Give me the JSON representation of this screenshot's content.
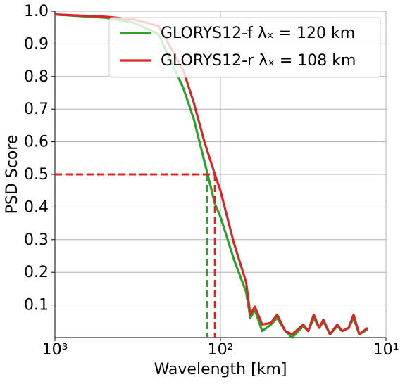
{
  "chart_data": {
    "type": "line",
    "xlabel": "Wavelength [km]",
    "ylabel": "PSD Score",
    "xscale": "log",
    "xlim": [
      1000,
      10
    ],
    "xticks": [
      {
        "value": 1000,
        "label": "10³"
      },
      {
        "value": 100,
        "label": "10²"
      },
      {
        "value": 10,
        "label": "10¹"
      }
    ],
    "ylim": [
      0,
      1
    ],
    "yticks": [
      0.1,
      0.2,
      0.3,
      0.4,
      0.5,
      0.6,
      0.7,
      0.8,
      0.9,
      {
        "value": 1,
        "label": "1.0"
      }
    ],
    "grid": true,
    "legend": "upper right",
    "threshold": 0.5,
    "x": [
      1000,
      494,
      333,
      237,
      168,
      145,
      125,
      108,
      100,
      83,
      70,
      66,
      62,
      56,
      49.5,
      45.5,
      40.6,
      36.9,
      31.6,
      29.5,
      27.3,
      25.3,
      23.9,
      21.8,
      19.7,
      18.4,
      16.8,
      15.7,
      14.5,
      12.9
    ],
    "series": [
      {
        "name": "GLORYS12-f  λₓ = 120 km",
        "color": "#2ca02c",
        "lambda_x": 120,
        "values": [
          0.99,
          0.98,
          0.965,
          0.93,
          0.765,
          0.67,
          0.54,
          0.41,
          0.37,
          0.24,
          0.14,
          0.06,
          0.085,
          0.02,
          0.04,
          0.06,
          0.02,
          0.0,
          0.035,
          0.02,
          0.06,
          0.03,
          0.05,
          0.01,
          0.035,
          0.02,
          0.03,
          0.06,
          0.01,
          0.025
        ]
      },
      {
        "name": "GLORYS12-r  λₓ = 108 km",
        "color": "#d62728",
        "lambda_x": 108,
        "values": [
          0.99,
          0.983,
          0.975,
          0.955,
          0.82,
          0.72,
          0.6,
          0.5,
          0.45,
          0.29,
          0.17,
          0.07,
          0.095,
          0.04,
          0.045,
          0.07,
          0.02,
          0.01,
          0.04,
          0.02,
          0.07,
          0.03,
          0.055,
          0.01,
          0.04,
          0.02,
          0.03,
          0.07,
          0.01,
          0.03
        ]
      }
    ]
  }
}
